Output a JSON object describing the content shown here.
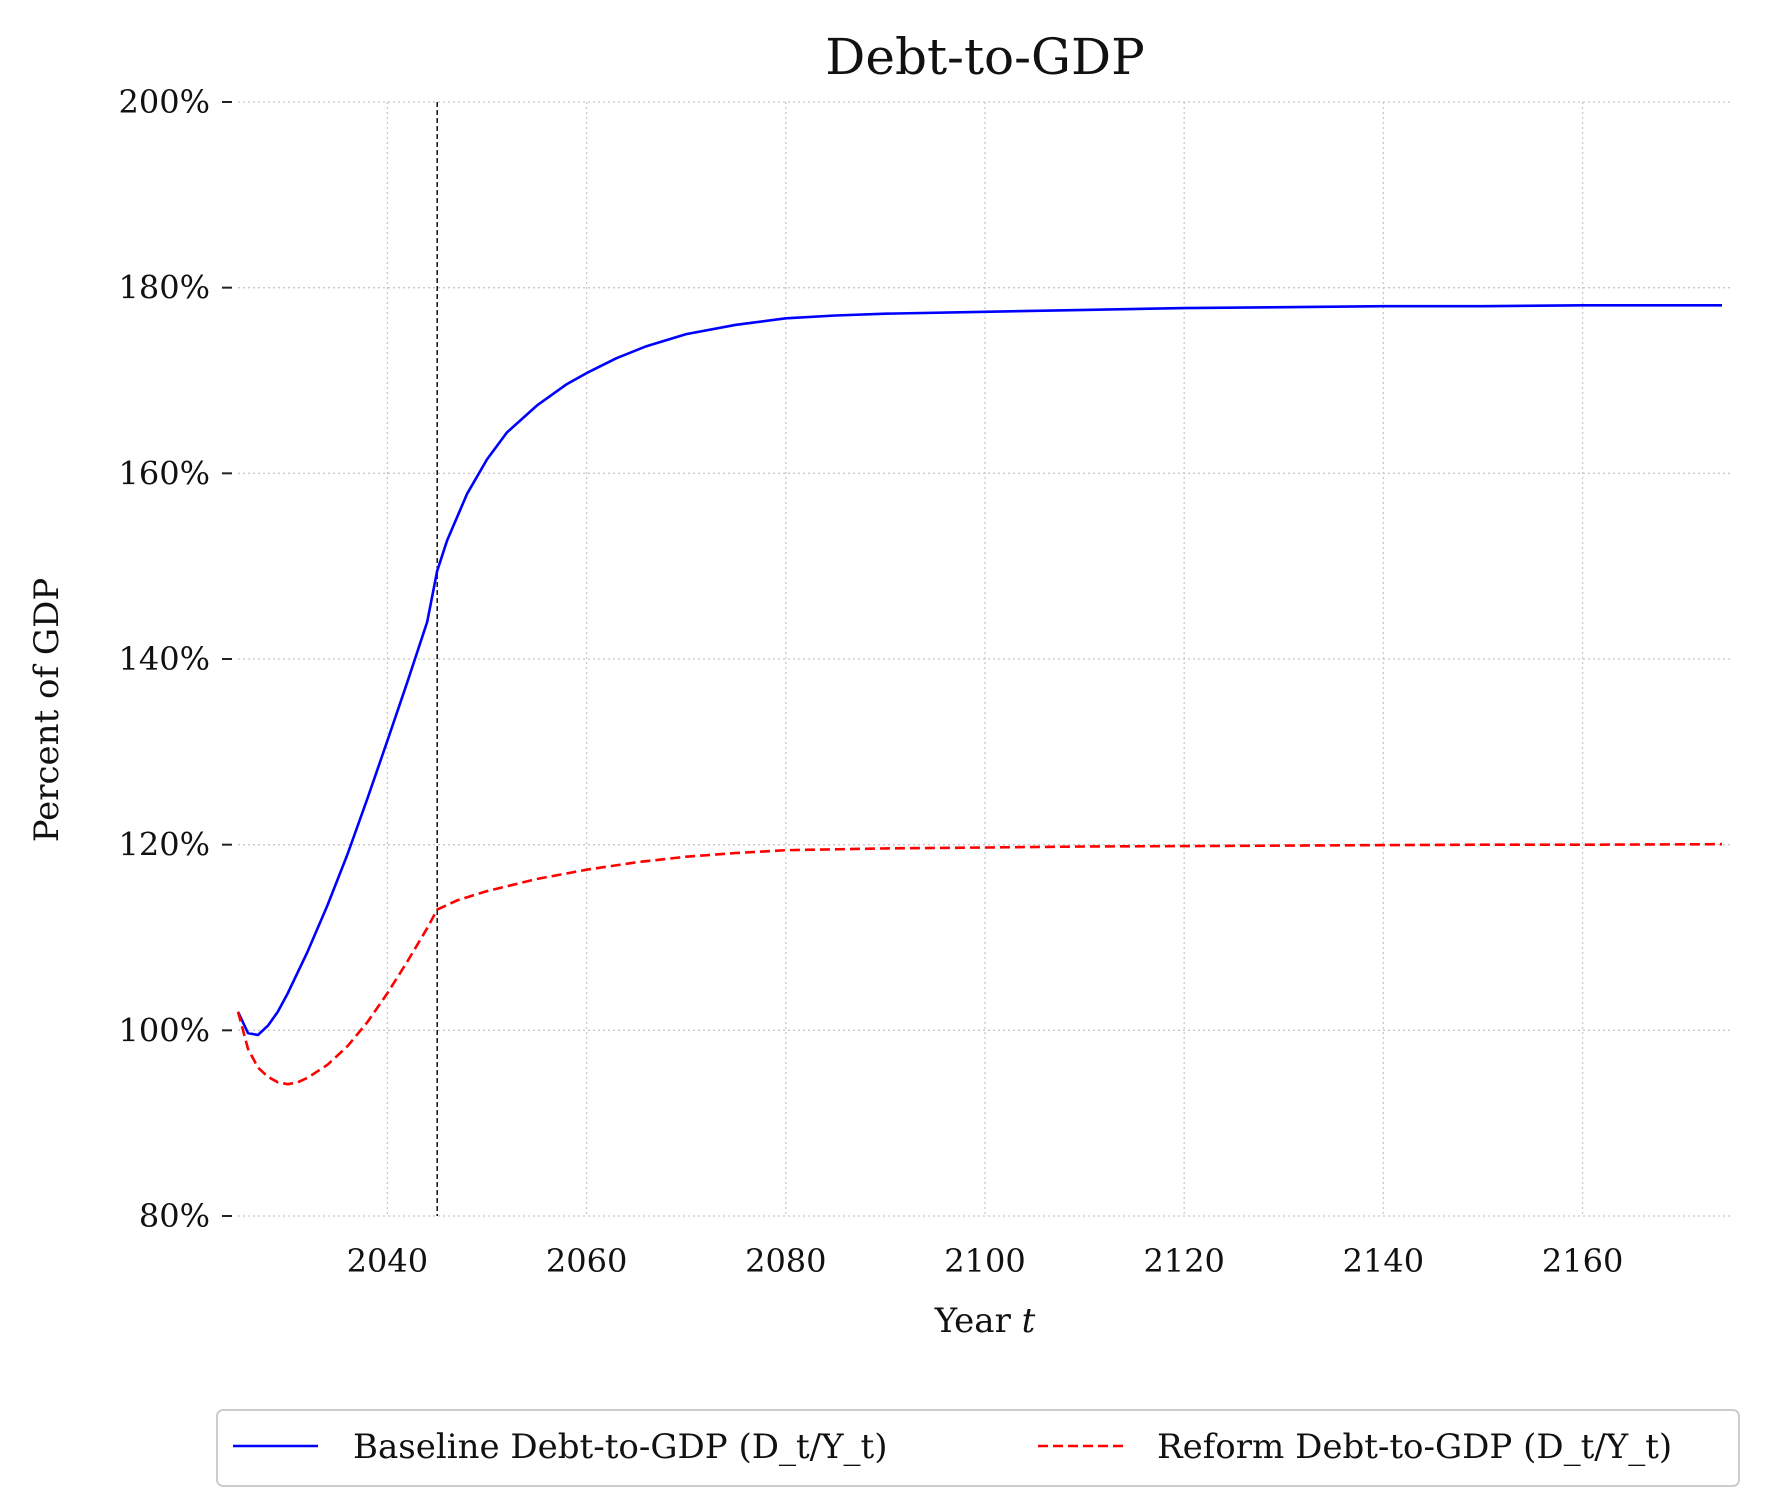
{
  "chart_data": {
    "type": "line",
    "title": "Debt-to-GDP",
    "xlabel": "Year",
    "xlabel_var": "t",
    "ylabel": "Percent of GDP",
    "xlim": [
      2025,
      2175
    ],
    "ylim": [
      80,
      200
    ],
    "x_ticks": [
      2040,
      2060,
      2080,
      2100,
      2120,
      2140,
      2160
    ],
    "x_tick_labels": [
      "2040",
      "2060",
      "2080",
      "2100",
      "2120",
      "2140",
      "2160"
    ],
    "y_ticks": [
      80,
      100,
      120,
      140,
      160,
      180,
      200
    ],
    "y_tick_labels": [
      "80%",
      "100%",
      "120%",
      "140%",
      "160%",
      "180%",
      "200%"
    ],
    "grid": true,
    "vline": {
      "x": 2045,
      "style": "dashed",
      "color": "#000000"
    },
    "legend_position": "bottom-center",
    "series": [
      {
        "name": "Baseline Debt-to-GDP",
        "math": "(D_t/Y_t)",
        "color": "#0000ff",
        "style": "solid",
        "points": [
          [
            2025,
            102.0
          ],
          [
            2026,
            99.7
          ],
          [
            2027,
            99.5
          ],
          [
            2028,
            100.5
          ],
          [
            2029,
            102.0
          ],
          [
            2030,
            104.0
          ],
          [
            2032,
            108.5
          ],
          [
            2034,
            113.5
          ],
          [
            2036,
            119.0
          ],
          [
            2038,
            125.0
          ],
          [
            2040,
            131.2
          ],
          [
            2042,
            137.5
          ],
          [
            2044,
            144.0
          ],
          [
            2045,
            149.5
          ],
          [
            2046,
            152.8
          ],
          [
            2048,
            157.8
          ],
          [
            2050,
            161.5
          ],
          [
            2052,
            164.4
          ],
          [
            2055,
            167.3
          ],
          [
            2058,
            169.6
          ],
          [
            2060,
            170.8
          ],
          [
            2063,
            172.4
          ],
          [
            2066,
            173.7
          ],
          [
            2070,
            175.0
          ],
          [
            2075,
            176.0
          ],
          [
            2080,
            176.7
          ],
          [
            2085,
            177.0
          ],
          [
            2090,
            177.2
          ],
          [
            2100,
            177.4
          ],
          [
            2110,
            177.6
          ],
          [
            2120,
            177.8
          ],
          [
            2130,
            177.9
          ],
          [
            2140,
            178.0
          ],
          [
            2150,
            178.0
          ],
          [
            2160,
            178.1
          ],
          [
            2174,
            178.1
          ]
        ]
      },
      {
        "name": "Reform Debt-to-GDP",
        "math": "(D_t/Y_t)",
        "color": "#ff0000",
        "style": "dashed",
        "points": [
          [
            2025,
            102.0
          ],
          [
            2026,
            98.0
          ],
          [
            2027,
            96.0
          ],
          [
            2028,
            95.0
          ],
          [
            2029,
            94.4
          ],
          [
            2030,
            94.2
          ],
          [
            2031,
            94.4
          ],
          [
            2032,
            94.9
          ],
          [
            2034,
            96.3
          ],
          [
            2036,
            98.3
          ],
          [
            2038,
            100.9
          ],
          [
            2040,
            104.0
          ],
          [
            2042,
            107.4
          ],
          [
            2044,
            111.0
          ],
          [
            2045,
            113.0
          ],
          [
            2047,
            114.0
          ],
          [
            2050,
            115.0
          ],
          [
            2055,
            116.3
          ],
          [
            2060,
            117.3
          ],
          [
            2065,
            118.1
          ],
          [
            2070,
            118.7
          ],
          [
            2075,
            119.1
          ],
          [
            2080,
            119.4
          ],
          [
            2090,
            119.6
          ],
          [
            2100,
            119.7
          ],
          [
            2110,
            119.8
          ],
          [
            2120,
            119.85
          ],
          [
            2130,
            119.9
          ],
          [
            2140,
            119.95
          ],
          [
            2150,
            120.0
          ],
          [
            2160,
            120.0
          ],
          [
            2174,
            120.05
          ]
        ]
      }
    ]
  }
}
